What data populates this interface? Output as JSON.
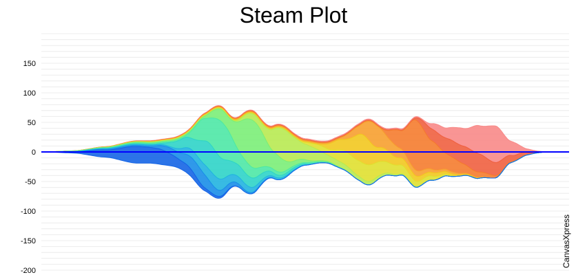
{
  "chart_data": {
    "type": "area",
    "title": "Steam Plot",
    "watermark": "CanvasXpress",
    "yticks": [
      150,
      100,
      50,
      0,
      -50,
      -100,
      -150,
      -200
    ],
    "ylim": [
      -200,
      200
    ],
    "xlim": [
      0,
      100
    ],
    "grid": true,
    "baseline_color": "#0000ff",
    "series": [
      {
        "color": "#1565e6",
        "values": [
          [
            0,
            0
          ],
          [
            6,
            2
          ],
          [
            12,
            12
          ],
          [
            18,
            28
          ],
          [
            22,
            26
          ],
          [
            27,
            14
          ],
          [
            32,
            4
          ],
          [
            38,
            0
          ],
          [
            100,
            0
          ]
        ]
      },
      {
        "color": "#1a8ee8",
        "values": [
          [
            0,
            0
          ],
          [
            20,
            2
          ],
          [
            25,
            10
          ],
          [
            30,
            24
          ],
          [
            34,
            10
          ],
          [
            40,
            2
          ],
          [
            46,
            0
          ],
          [
            100,
            0
          ]
        ]
      },
      {
        "color": "#22b4e0",
        "values": [
          [
            0,
            0
          ],
          [
            24,
            2
          ],
          [
            29,
            14
          ],
          [
            33,
            20
          ],
          [
            37,
            12
          ],
          [
            44,
            3
          ],
          [
            52,
            0
          ],
          [
            100,
            0
          ]
        ]
      },
      {
        "color": "#2fd4c8",
        "values": [
          [
            0,
            0
          ],
          [
            22,
            1
          ],
          [
            28,
            18
          ],
          [
            32,
            45
          ],
          [
            37,
            20
          ],
          [
            46,
            4
          ],
          [
            54,
            0
          ],
          [
            100,
            0
          ]
        ]
      },
      {
        "color": "#4ee8a6",
        "values": [
          [
            0,
            0
          ],
          [
            27,
            2
          ],
          [
            31,
            38
          ],
          [
            34,
            62
          ],
          [
            38,
            22
          ],
          [
            44,
            6
          ],
          [
            50,
            2
          ],
          [
            60,
            0
          ],
          [
            100,
            0
          ]
        ]
      },
      {
        "color": "#7bee78",
        "values": [
          [
            0,
            0
          ],
          [
            30,
            2
          ],
          [
            35,
            22
          ],
          [
            40,
            80
          ],
          [
            44,
            30
          ],
          [
            48,
            8
          ],
          [
            52,
            2
          ],
          [
            60,
            0
          ],
          [
            100,
            0
          ]
        ]
      },
      {
        "color": "#b8ea52",
        "values": [
          [
            0,
            0
          ],
          [
            36,
            1
          ],
          [
            41,
            12
          ],
          [
            46,
            52
          ],
          [
            50,
            26
          ],
          [
            55,
            10
          ],
          [
            62,
            6
          ],
          [
            68,
            2
          ],
          [
            76,
            0
          ],
          [
            100,
            0
          ]
        ]
      },
      {
        "color": "#e0e030",
        "values": [
          [
            0,
            0
          ],
          [
            48,
            1
          ],
          [
            54,
            10
          ],
          [
            58,
            24
          ],
          [
            62,
            28
          ],
          [
            67,
            16
          ],
          [
            72,
            8
          ],
          [
            80,
            0
          ],
          [
            100,
            0
          ]
        ]
      },
      {
        "color": "#f2c820",
        "values": [
          [
            0,
            0
          ],
          [
            52,
            1
          ],
          [
            57,
            18
          ],
          [
            61,
            48
          ],
          [
            64,
            24
          ],
          [
            68,
            12
          ],
          [
            74,
            6
          ],
          [
            80,
            2
          ],
          [
            86,
            0
          ],
          [
            100,
            0
          ]
        ]
      },
      {
        "color": "#f7a030",
        "values": [
          [
            0,
            0
          ],
          [
            56,
            2
          ],
          [
            60,
            14
          ],
          [
            63,
            38
          ],
          [
            66,
            22
          ],
          [
            70,
            10
          ],
          [
            76,
            4
          ],
          [
            84,
            0
          ],
          [
            100,
            0
          ]
        ]
      },
      {
        "color": "#f57c2f",
        "values": [
          [
            0,
            0
          ],
          [
            64,
            1
          ],
          [
            68,
            30
          ],
          [
            71,
            85
          ],
          [
            74,
            48
          ],
          [
            77,
            26
          ],
          [
            82,
            10
          ],
          [
            88,
            2
          ],
          [
            94,
            0
          ],
          [
            100,
            0
          ]
        ]
      },
      {
        "color": "#ef6040",
        "values": [
          [
            0,
            0
          ],
          [
            70,
            1
          ],
          [
            74,
            20
          ],
          [
            78,
            28
          ],
          [
            82,
            32
          ],
          [
            86,
            22
          ],
          [
            90,
            8
          ],
          [
            94,
            0
          ],
          [
            100,
            0
          ]
        ]
      },
      {
        "color": "#f88a88",
        "values": [
          [
            0,
            0
          ],
          [
            72,
            2
          ],
          [
            76,
            16
          ],
          [
            80,
            30
          ],
          [
            83,
            48
          ],
          [
            86,
            62
          ],
          [
            89,
            24
          ],
          [
            92,
            6
          ],
          [
            96,
            0
          ],
          [
            100,
            0
          ]
        ]
      }
    ]
  }
}
